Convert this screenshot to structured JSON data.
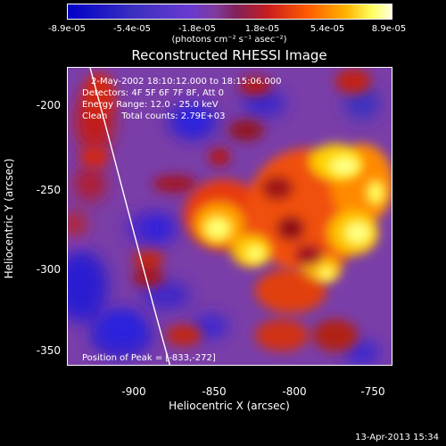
{
  "colorbar": {
    "ticks": [
      "-8.9e-05",
      "-5.4e-05",
      "-1.8e-05",
      "1.8e-05",
      "5.4e-05",
      "8.9e-05"
    ],
    "units": "(photons cm⁻² s⁻¹ asec⁻²)"
  },
  "plot": {
    "title": "Reconstructed RHESSI Image",
    "info_lines": [
      "2-May-2002 18:10:12.000 to 18:15:06.000",
      "Detectors: 4F 5F 6F 7F 8F, Att 0",
      "Energy Range: 12.0 - 25.0 keV",
      "Clean     Total counts: 2.79E+03"
    ],
    "peak_label": "Position of Peak = [-833,-272]",
    "xlabel": "Heliocentric X (arcsec)",
    "ylabel": "Heliocentric Y (arcsec)",
    "xticks": [
      "-900",
      "-850",
      "-800",
      "-750"
    ],
    "yticks": [
      "-200",
      "-250",
      "-300",
      "-350"
    ]
  },
  "footer": {
    "timestamp": "13-Apr-2013 15:34"
  }
}
